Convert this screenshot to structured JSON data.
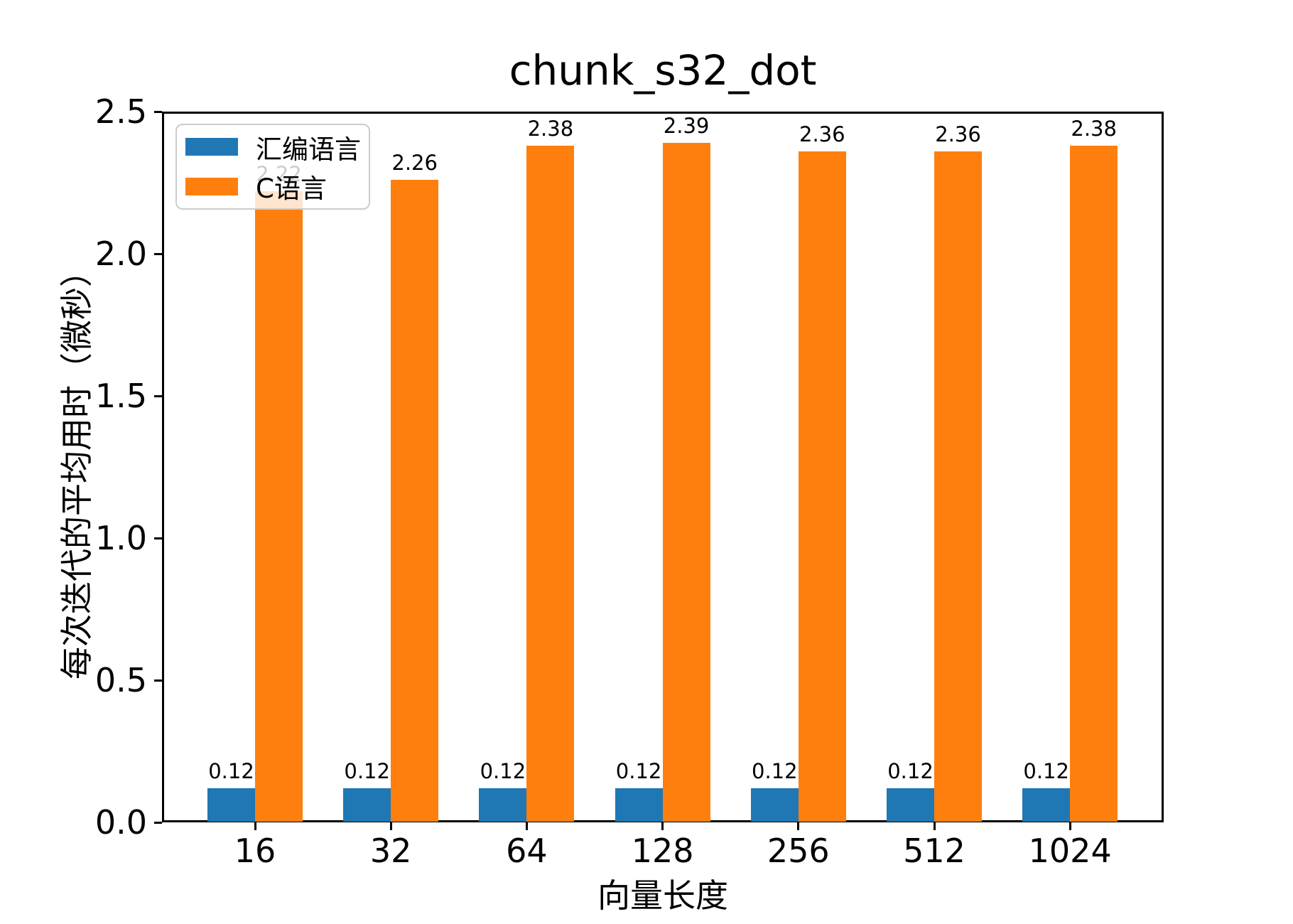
{
  "chart_data": {
    "type": "bar",
    "title": "chunk_s32_dot",
    "xlabel": "向量长度",
    "ylabel": "每次迭代的平均用时（微秒）",
    "categories": [
      "16",
      "32",
      "64",
      "128",
      "256",
      "512",
      "1024"
    ],
    "series": [
      {
        "name": "汇编语言",
        "color": "#1f77b4",
        "values": [
          0.12,
          0.12,
          0.12,
          0.12,
          0.12,
          0.12,
          0.12
        ],
        "bar_labels": [
          "0.12",
          "0.12",
          "0.12",
          "0.12",
          "0.12",
          "0.12",
          "0.12"
        ]
      },
      {
        "name": "C语言",
        "color": "#ff7f0e",
        "values": [
          2.22,
          2.26,
          2.38,
          2.39,
          2.36,
          2.36,
          2.38
        ],
        "bar_labels": [
          "2.22",
          "2.26",
          "2.38",
          "2.39",
          "2.36",
          "2.36",
          "2.38"
        ]
      }
    ],
    "ylim": [
      0,
      2.5
    ],
    "yticks": [
      "0.0",
      "0.5",
      "1.0",
      "1.5",
      "2.0",
      "2.5"
    ],
    "grid": false,
    "legend_position": "upper left",
    "background_color": "#ffffff",
    "spine_color": "#000000"
  }
}
